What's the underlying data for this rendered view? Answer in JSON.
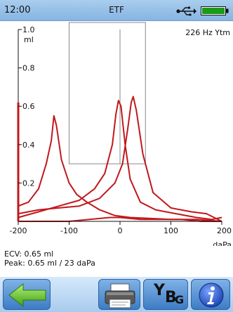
{
  "status": {
    "time": "12:00",
    "title": "ETF",
    "icons": [
      "usb-icon",
      "battery-icon"
    ],
    "battery_level": 1.0
  },
  "chart_data": {
    "type": "line",
    "probe": "226 Hz Ytm",
    "xlim": [
      -200,
      200
    ],
    "ylim": [
      0,
      1.0
    ],
    "x_ticks": [
      {
        "value": -200,
        "label": "-200"
      },
      {
        "value": -100,
        "label": "-100"
      },
      {
        "value": 0,
        "label": "0"
      },
      {
        "value": 100,
        "label": "100"
      },
      {
        "value": 200,
        "label": "200"
      }
    ],
    "x_unit": "daPa",
    "y_ticks": [
      {
        "value": 1.0,
        "label": "1.0"
      },
      {
        "value": 0.8,
        "label": "0.8"
      },
      {
        "value": 0.6,
        "label": "0.6"
      },
      {
        "value": 0.4,
        "label": "0.4"
      },
      {
        "value": 0.2,
        "label": "0.2"
      }
    ],
    "y_unit": "ml",
    "y_bar_top": 0.62,
    "box": {
      "x_min": -100,
      "x_max": 50,
      "y_min": 0.3,
      "y_max": 1.0
    },
    "series": [
      {
        "color": "#c0181c",
        "points": [
          [
            -200,
            0.08
          ],
          [
            -180,
            0.1
          ],
          [
            -160,
            0.17
          ],
          [
            -145,
            0.3
          ],
          [
            -135,
            0.42
          ],
          [
            -130,
            0.55
          ],
          [
            -125,
            0.5
          ],
          [
            -115,
            0.32
          ],
          [
            -100,
            0.2
          ],
          [
            -85,
            0.14
          ],
          [
            -65,
            0.1
          ],
          [
            -40,
            0.06
          ],
          [
            -10,
            0.03
          ],
          [
            20,
            0.02
          ],
          [
            60,
            0.015
          ],
          [
            100,
            0.01
          ],
          [
            150,
            0.01
          ],
          [
            200,
            0.0
          ]
        ]
      },
      {
        "color": "#c0181c",
        "points": [
          [
            -200,
            0.02
          ],
          [
            -160,
            0.05
          ],
          [
            -120,
            0.08
          ],
          [
            -80,
            0.11
          ],
          [
            -50,
            0.17
          ],
          [
            -30,
            0.25
          ],
          [
            -15,
            0.4
          ],
          [
            -8,
            0.56
          ],
          [
            -3,
            0.63
          ],
          [
            2,
            0.6
          ],
          [
            10,
            0.4
          ],
          [
            20,
            0.22
          ],
          [
            40,
            0.1
          ],
          [
            70,
            0.06
          ],
          [
            110,
            0.04
          ],
          [
            150,
            0.02
          ],
          [
            180,
            0.01
          ],
          [
            200,
            0.02
          ]
        ]
      },
      {
        "color": "#c0181c",
        "points": [
          [
            -200,
            0.04
          ],
          [
            -160,
            0.06
          ],
          [
            -120,
            0.07
          ],
          [
            -80,
            0.08
          ],
          [
            -40,
            0.12
          ],
          [
            -10,
            0.2
          ],
          [
            5,
            0.3
          ],
          [
            15,
            0.48
          ],
          [
            22,
            0.62
          ],
          [
            26,
            0.65
          ],
          [
            32,
            0.58
          ],
          [
            45,
            0.35
          ],
          [
            65,
            0.15
          ],
          [
            100,
            0.07
          ],
          [
            140,
            0.05
          ],
          [
            170,
            0.04
          ],
          [
            200,
            0.0
          ]
        ]
      },
      {
        "color": "#c0181c",
        "points": [
          [
            -200,
            0.0
          ],
          [
            -150,
            0.0
          ],
          [
            -100,
            0.0
          ],
          [
            -60,
            0.01
          ],
          [
            -20,
            0.02
          ],
          [
            0,
            0.02
          ],
          [
            40,
            0.01
          ],
          [
            80,
            0.01
          ],
          [
            120,
            0.01
          ],
          [
            160,
            0.0
          ],
          [
            200,
            0.0
          ]
        ]
      }
    ]
  },
  "info": {
    "ecv": "ECV: 0.65 ml",
    "peak": "Peak: 0.65 ml / 23 daPa"
  },
  "toolbar": {
    "buttons": [
      {
        "name": "back-button",
        "icon": "arrow-left-icon"
      },
      {
        "name": "print-button",
        "icon": "printer-icon"
      },
      {
        "name": "ybg-button",
        "label_y": "Y",
        "label_b": "B",
        "label_g": "G"
      },
      {
        "name": "info-button",
        "icon": "info-icon"
      }
    ]
  },
  "colors": {
    "accent": "#c0181c",
    "header": "#95bfe8",
    "button": "#3d7cc4"
  }
}
